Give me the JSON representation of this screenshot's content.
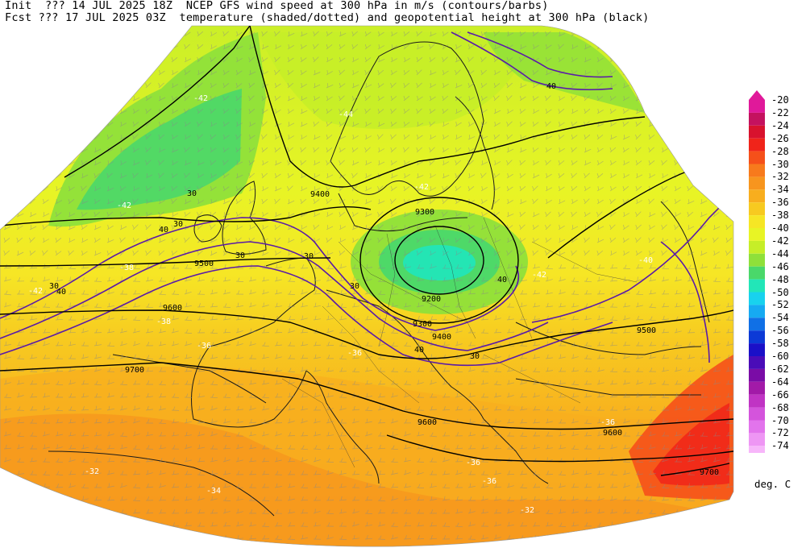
{
  "header": {
    "line1": "Init  ??? 14 JUL 2025 18Z  NCEP GFS wind speed at 300 hPa in m/s (contours/barbs)",
    "line2": "Fcst ??? 17 JUL 2025 03Z  temperature (shaded/dotted) and geopotential height at 300 hPa (black)"
  },
  "legend": {
    "unit": "deg. C",
    "entries": [
      {
        "label": "-20",
        "color": "#e0199a"
      },
      {
        "label": "-22",
        "color": "#c4125f"
      },
      {
        "label": "-24",
        "color": "#d8122e"
      },
      {
        "label": "-26",
        "color": "#f0241a"
      },
      {
        "label": "-28",
        "color": "#f5501a"
      },
      {
        "label": "-30",
        "color": "#f77a1c"
      },
      {
        "label": "-32",
        "color": "#f7951e"
      },
      {
        "label": "-34",
        "color": "#f8ae1e"
      },
      {
        "label": "-36",
        "color": "#f7ca20"
      },
      {
        "label": "-38",
        "color": "#f6e625"
      },
      {
        "label": "-40",
        "color": "#e8f425"
      },
      {
        "label": "-42",
        "color": "#c6ee28"
      },
      {
        "label": "-44",
        "color": "#8fe03a"
      },
      {
        "label": "-46",
        "color": "#4ad86a"
      },
      {
        "label": "-48",
        "color": "#22e6b8"
      },
      {
        "label": "-50",
        "color": "#18d2ee"
      },
      {
        "label": "-52",
        "color": "#16aaf2"
      },
      {
        "label": "-54",
        "color": "#1070e6"
      },
      {
        "label": "-56",
        "color": "#0c3ad6"
      },
      {
        "label": "-58",
        "color": "#1a10c8"
      },
      {
        "label": "-60",
        "color": "#4a0cb8"
      },
      {
        "label": "-62",
        "color": "#7a0ca6"
      },
      {
        "label": "-64",
        "color": "#a21aa8"
      },
      {
        "label": "-66",
        "color": "#c034c4"
      },
      {
        "label": "-68",
        "color": "#d454dc"
      },
      {
        "label": "-70",
        "color": "#e274ec"
      },
      {
        "label": "-72",
        "color": "#ee96f4"
      },
      {
        "label": "-74",
        "color": "#f7b6fa"
      }
    ]
  },
  "height_labels": [
    "9400",
    "9300",
    "9200",
    "9300",
    "9400",
    "9500",
    "9600",
    "9700",
    "9500",
    "9600",
    "9600",
    "9700"
  ],
  "wind_labels": [
    "30",
    "40",
    "30",
    "30",
    "40",
    "30",
    "40",
    "30",
    "40",
    "30",
    "40",
    "30"
  ],
  "temp_labels": [
    "-42",
    "-44",
    "-42",
    "-42",
    "-40",
    "-42",
    "-42",
    "-38",
    "-38",
    "-36",
    "-36",
    "-36",
    "-36",
    "-32",
    "-34",
    "-36",
    "-32"
  ],
  "colors": {
    "contour": "#000000",
    "wind_contour": "#5a1aa8",
    "coastline": "#1a1a1a"
  }
}
